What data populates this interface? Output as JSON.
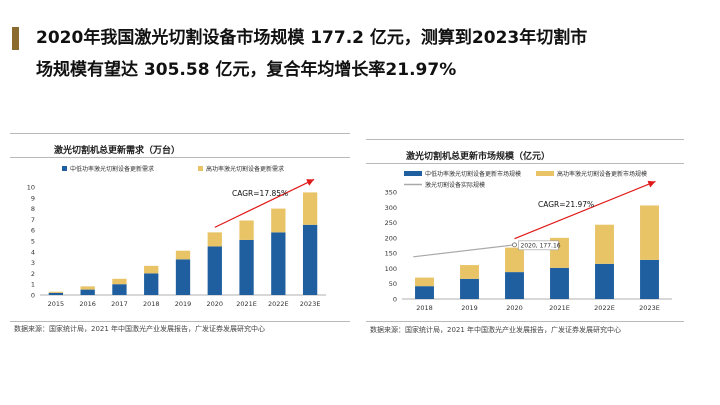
{
  "headline": {
    "line1": "2020年我国激光切割设备市场规模 177.2 亿元，测算到2023年切割市",
    "line2": "场规模有望达 305.58 亿元，复合年均增长率21.97%"
  },
  "colors": {
    "accent": "#8a6a2e",
    "blue": "#1f5f9f",
    "gold": "#e8c466",
    "arrow": "#e01919",
    "gray_line": "#a9a9a9"
  },
  "chart_data": [
    {
      "type": "bar",
      "stacked": true,
      "title": "激光切割机总更新需求（万台）",
      "categories": [
        "2015",
        "2016",
        "2017",
        "2018",
        "2019",
        "2020",
        "2021E",
        "2022E",
        "2023E"
      ],
      "series": [
        {
          "name": "中低功率激光切割设备更新需求",
          "color": "#1f5f9f",
          "values": [
            0.2,
            0.5,
            1.0,
            2.0,
            3.3,
            4.5,
            5.1,
            5.8,
            6.5
          ]
        },
        {
          "name": "高功率激光切割设备更新需求",
          "color": "#e8c466",
          "values": [
            0.1,
            0.3,
            0.5,
            0.7,
            0.8,
            1.3,
            1.8,
            2.2,
            3.0
          ]
        }
      ],
      "ylim": [
        0,
        10
      ],
      "yticks": [
        0,
        1,
        2,
        3,
        4,
        5,
        6,
        7,
        8,
        9,
        10
      ],
      "legend": "top",
      "grid": false,
      "annotation": {
        "text": "CAGR=17.85%",
        "arrow_from_category": "2020",
        "arrow_to_category": "2023E"
      },
      "source": "数据来源：国家统计局，2021 年中国激光产业发展报告，广发证券发展研究中心"
    },
    {
      "type": "bar",
      "stacked": true,
      "title": "激光切割机总更新市场规模（亿元）",
      "categories": [
        "2018",
        "2019",
        "2020",
        "2021E",
        "2022E",
        "2023E"
      ],
      "series": [
        {
          "name": "中低功率激光切割设备更新市场规模",
          "color": "#1f5f9f",
          "values": [
            42,
            66,
            88,
            102,
            115,
            128
          ]
        },
        {
          "name": "高功率激光切割设备更新市场规模",
          "color": "#e8c466",
          "values": [
            28,
            45,
            80,
            98,
            128,
            178
          ]
        },
        {
          "name": "激光切割设备实际规模",
          "color": "#a9a9a9",
          "type": "line",
          "x": [
            "2018",
            "2020"
          ],
          "values": [
            138,
            177.16
          ]
        }
      ],
      "ylim": [
        0,
        350
      ],
      "yticks": [
        0,
        50,
        100,
        150,
        200,
        250,
        300,
        350
      ],
      "legend": "top",
      "grid": false,
      "annotation": {
        "text": "CAGR=21.97%",
        "arrow_from_category": "2020",
        "arrow_to_category": "2023E"
      },
      "point_label": "2020, 177.16",
      "source": "数据来源：国家统计局，2021 年中国激光产业发展报告，广发证券发展研究中心"
    }
  ]
}
